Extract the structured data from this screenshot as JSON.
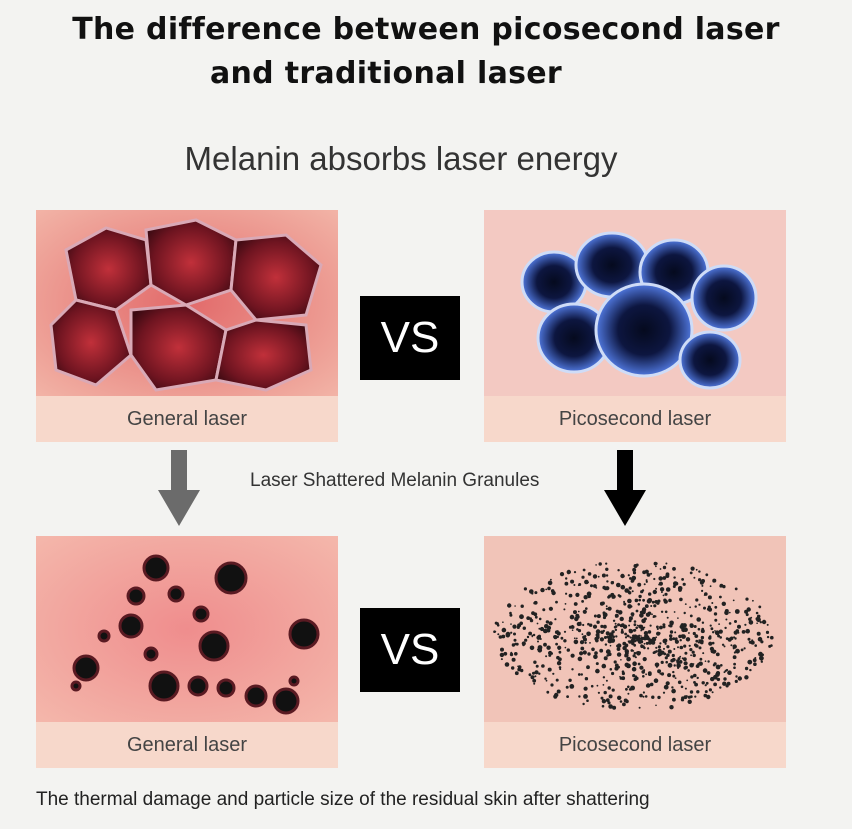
{
  "header": {
    "title_line1": "The difference between picosecond laser",
    "title_line2": "and traditional laser",
    "subtitle": "Melanin absorbs laser energy"
  },
  "top_row": {
    "left_label": "General laser",
    "right_label": "Picosecond laser",
    "vs": "VS"
  },
  "middle": {
    "label": "Laser Shattered Melanin Granules",
    "left_arrow_color": "#6b6b6b",
    "right_arrow_color": "#000000"
  },
  "bottom_row": {
    "left_label": "General laser",
    "right_label": "Picosecond laser",
    "vs": "VS"
  },
  "footer": {
    "caption": "The thermal damage and particle size of the residual skin after shattering"
  },
  "colors": {
    "background": "#f3f3f1",
    "label_band": "#f7d8cb",
    "general_cells": "#7a1a22",
    "picosecond_cells": "#4a6fd0",
    "vs_box": "#000000"
  }
}
